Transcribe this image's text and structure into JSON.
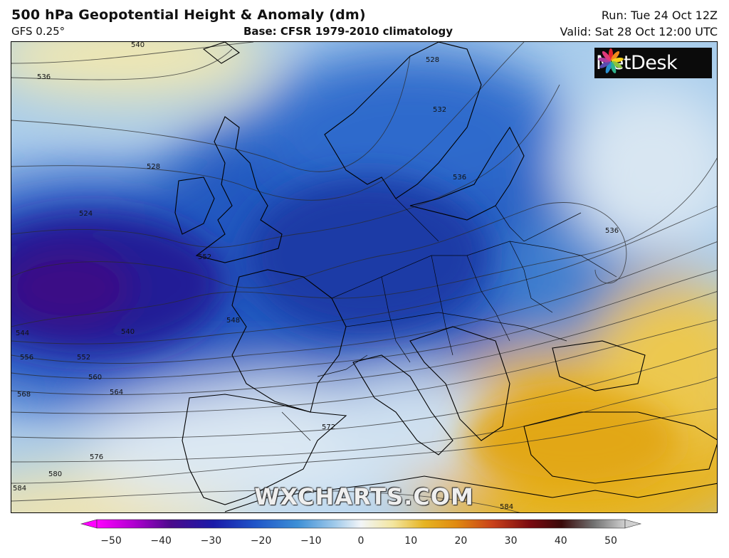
{
  "header": {
    "title": "500 hPa Geopotential Height & Anomaly (dm)",
    "model": "GFS 0.25°",
    "base": "Base: CFSR 1979-2010 climatology",
    "run": "Run: Tue 24 Oct 12Z",
    "valid": "Valid: Sat 28 Oct 12:00 UTC"
  },
  "logo": {
    "text": "MetDesk",
    "icon": "metdesk-flower-icon"
  },
  "watermark": "WXCHARTS.COM",
  "contour_labels": [
    "540",
    "536",
    "528",
    "528",
    "532",
    "536",
    "536",
    "524",
    "552",
    "548",
    "540",
    "544",
    "556",
    "552",
    "560",
    "564",
    "568",
    "572",
    "576",
    "580",
    "584",
    "584"
  ],
  "colorbar": {
    "ticks": [
      "−50",
      "−40",
      "−30",
      "−20",
      "−10",
      "0",
      "10",
      "20",
      "30",
      "40",
      "50"
    ],
    "colors": [
      "#ff00ff",
      "#b000d0",
      "#4b0a8c",
      "#1a1aa8",
      "#1f55c8",
      "#3d8fd6",
      "#9fc9ea",
      "#f2f5f8",
      "#f3e6a0",
      "#e6b422",
      "#e08a10",
      "#c8401a",
      "#7a0a10",
      "#3a0a0a",
      "#707070",
      "#d0d0d0"
    ]
  }
}
